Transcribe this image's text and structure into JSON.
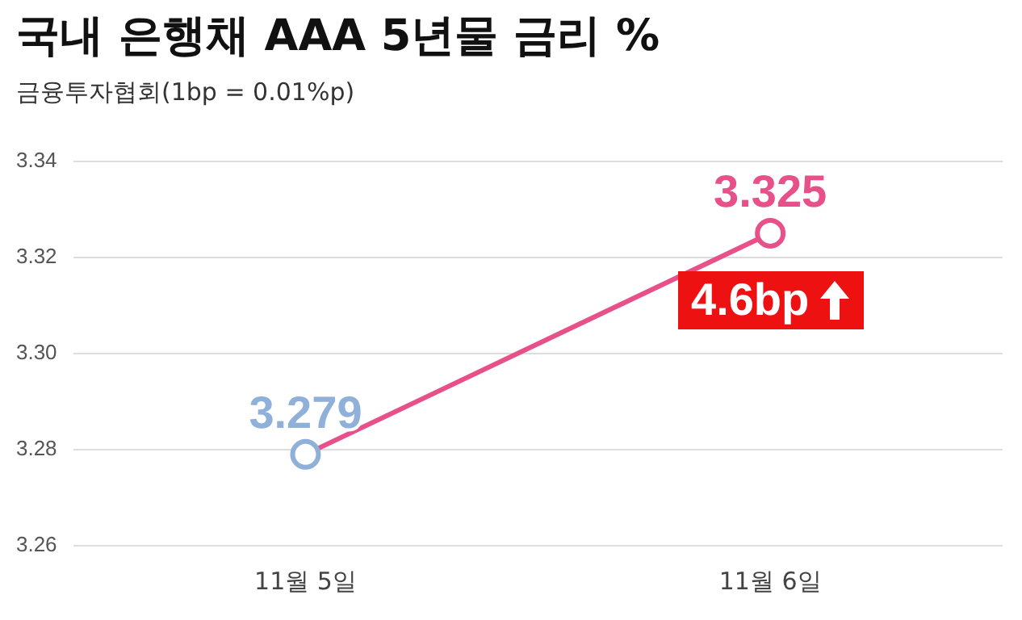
{
  "chart_data": {
    "type": "line",
    "title": "국내 은행채 AAA 5년물 금리 %",
    "subtitle": "금융투자협회(1bp = 0.01%p)",
    "categories": [
      "11월 5일",
      "11월 6일"
    ],
    "series": [
      {
        "color": "#e8508a",
        "colors": [
          "#8fb0d8",
          "#e8508a"
        ],
        "values": [
          3.279,
          3.325
        ]
      }
    ],
    "ylim": [
      3.26,
      3.34
    ],
    "yticks": [
      3.26,
      3.28,
      {
        "value": 3.3,
        "label": "3.30"
      },
      3.32,
      3.34
    ],
    "grid": "y",
    "marker": "circle",
    "line_style": "solid",
    "data_labels": true,
    "legend": false,
    "annotations": [
      "4.6bp"
    ]
  }
}
